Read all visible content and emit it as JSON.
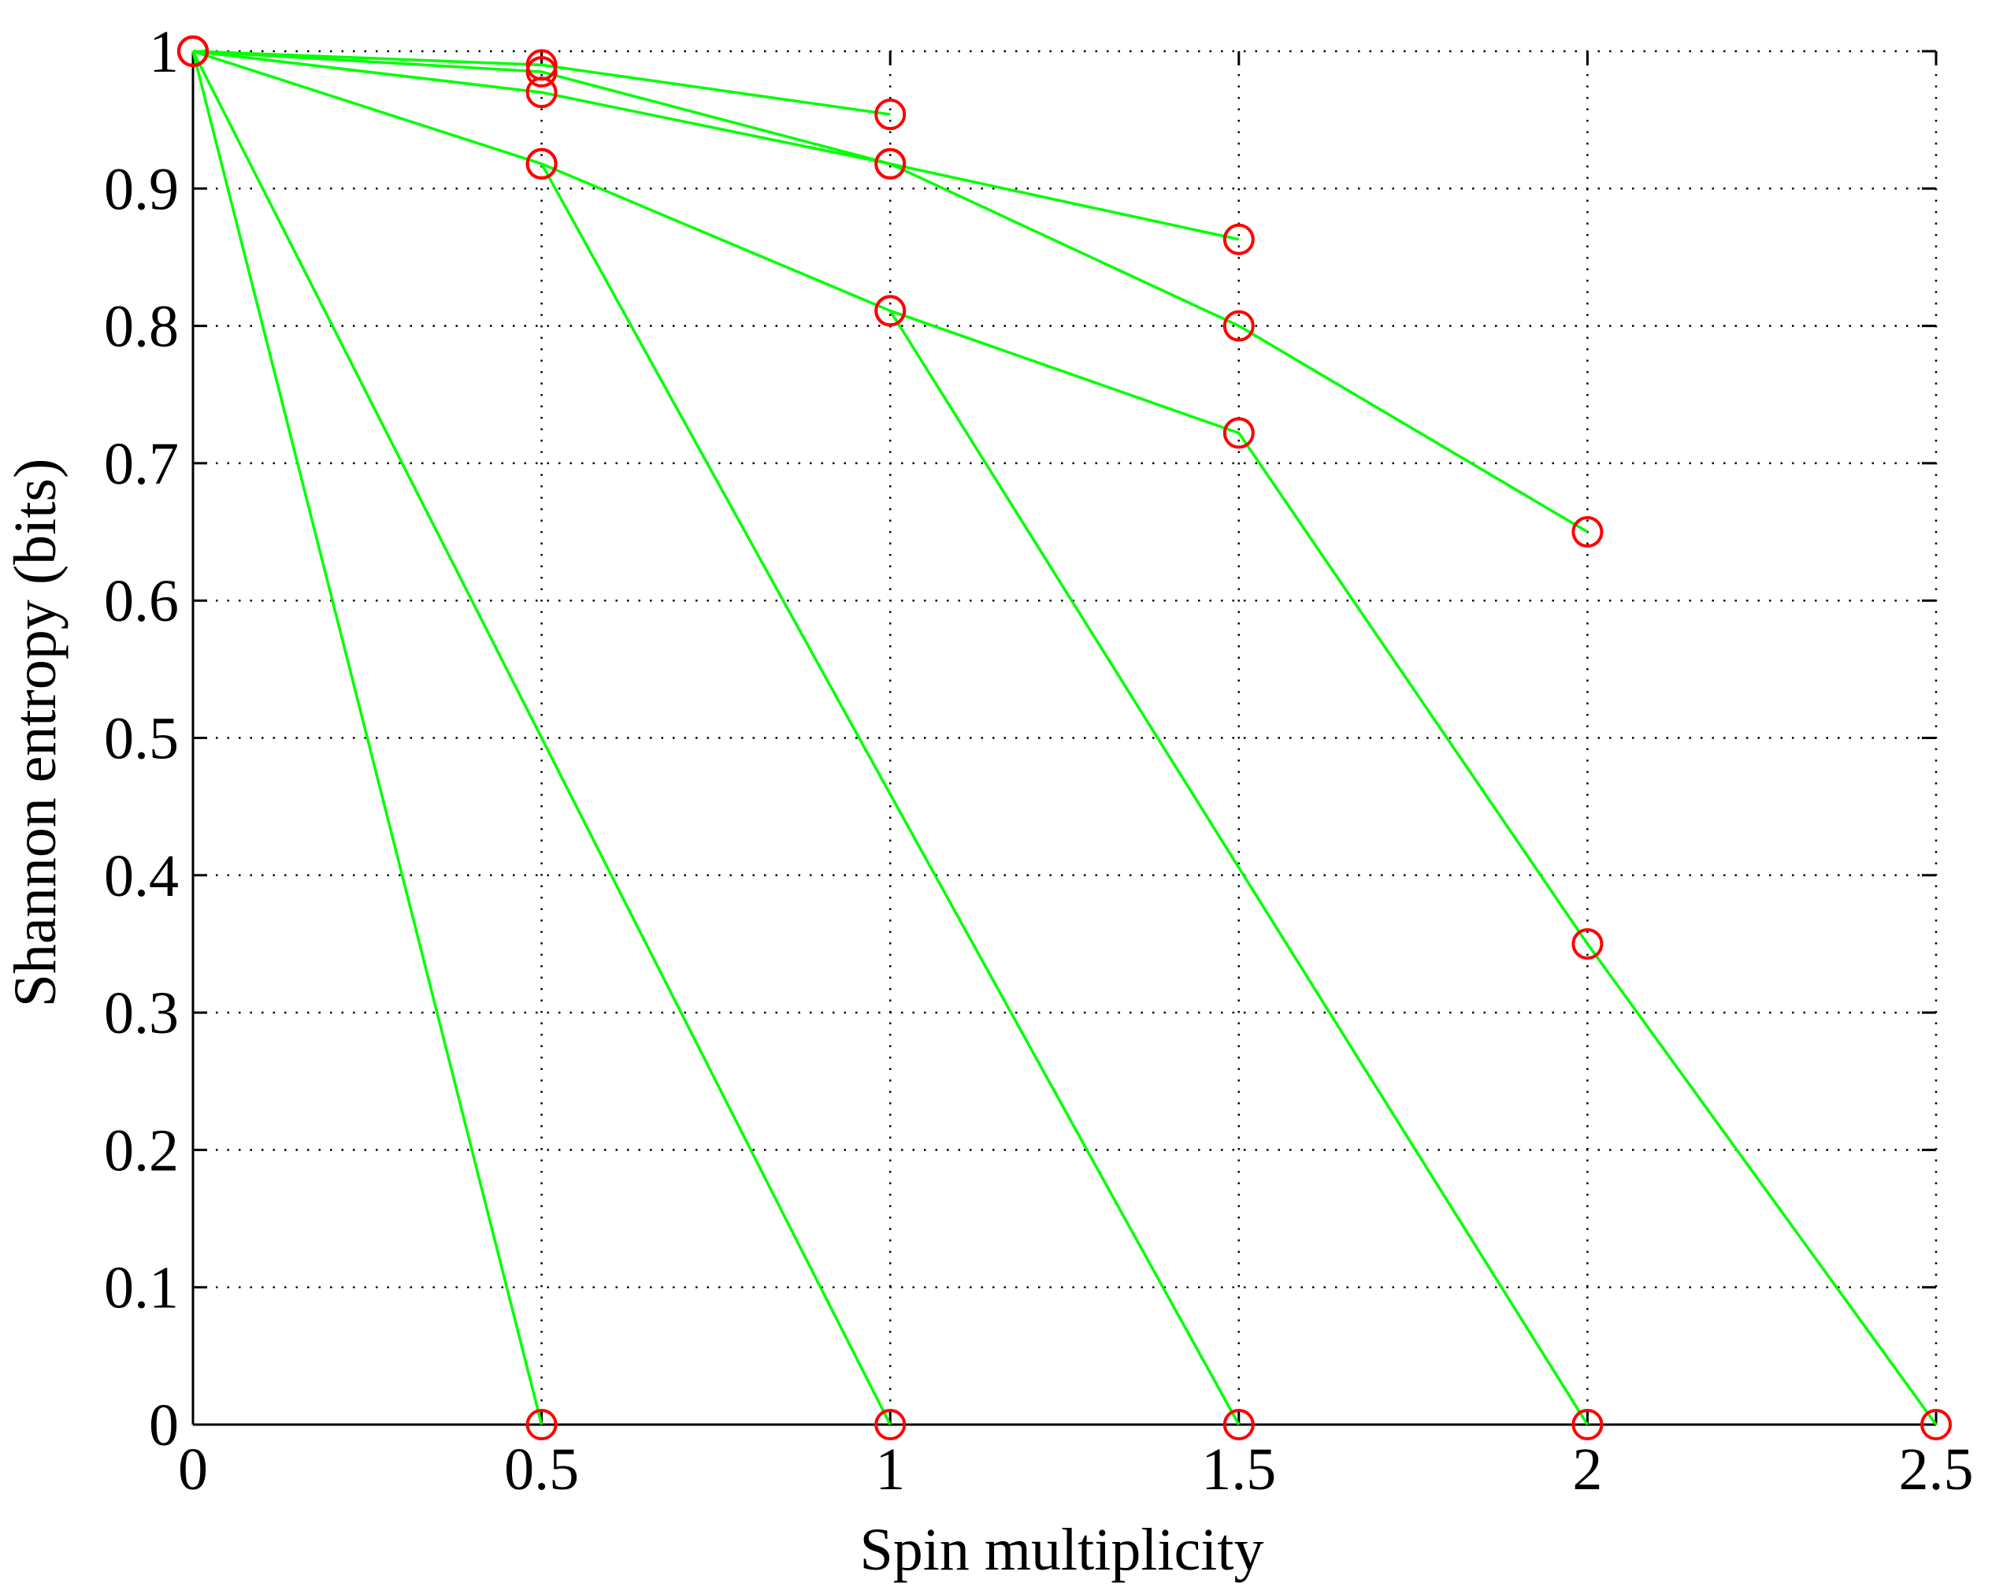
{
  "chart_data": {
    "type": "line",
    "title": "",
    "xlabel": "Spin multiplicity",
    "ylabel": "Shannon entropy (bits)",
    "xlim": [
      0,
      2.5
    ],
    "ylim": [
      0,
      1
    ],
    "x_ticks": [
      "0",
      "0.5",
      "1",
      "1.5",
      "2",
      "2.5"
    ],
    "y_ticks": [
      "0",
      "0.1",
      "0.2",
      "0.3",
      "0.4",
      "0.5",
      "0.6",
      "0.7",
      "0.8",
      "0.9",
      "1"
    ],
    "grid": true,
    "line_color": "#00ff00",
    "marker_color": "#ff0000",
    "marker": "circle",
    "series": [
      {
        "x": [
          0,
          0.5,
          1
        ],
        "y": [
          1,
          0.99,
          0.954
        ]
      },
      {
        "x": [
          0,
          0.5,
          1,
          1.5
        ],
        "y": [
          1,
          0.97,
          0.918,
          0.863
        ]
      },
      {
        "x": [
          0,
          0.5,
          1,
          1.5,
          2
        ],
        "y": [
          1,
          0.985,
          0.918,
          0.8,
          0.65
        ]
      },
      {
        "x": [
          0,
          0.5,
          1,
          1.5,
          2,
          2.5
        ],
        "y": [
          1,
          0.918,
          0.811,
          0.722,
          0.35,
          0
        ]
      },
      {
        "x": [
          0,
          1
        ],
        "y": [
          1,
          0
        ]
      },
      {
        "x": [
          0.5,
          1.5
        ],
        "y": [
          0.918,
          0
        ]
      },
      {
        "x": [
          1,
          2
        ],
        "y": [
          0.811,
          0
        ]
      },
      {
        "x": [
          0,
          0.5
        ],
        "y": [
          1,
          0
        ]
      }
    ]
  }
}
